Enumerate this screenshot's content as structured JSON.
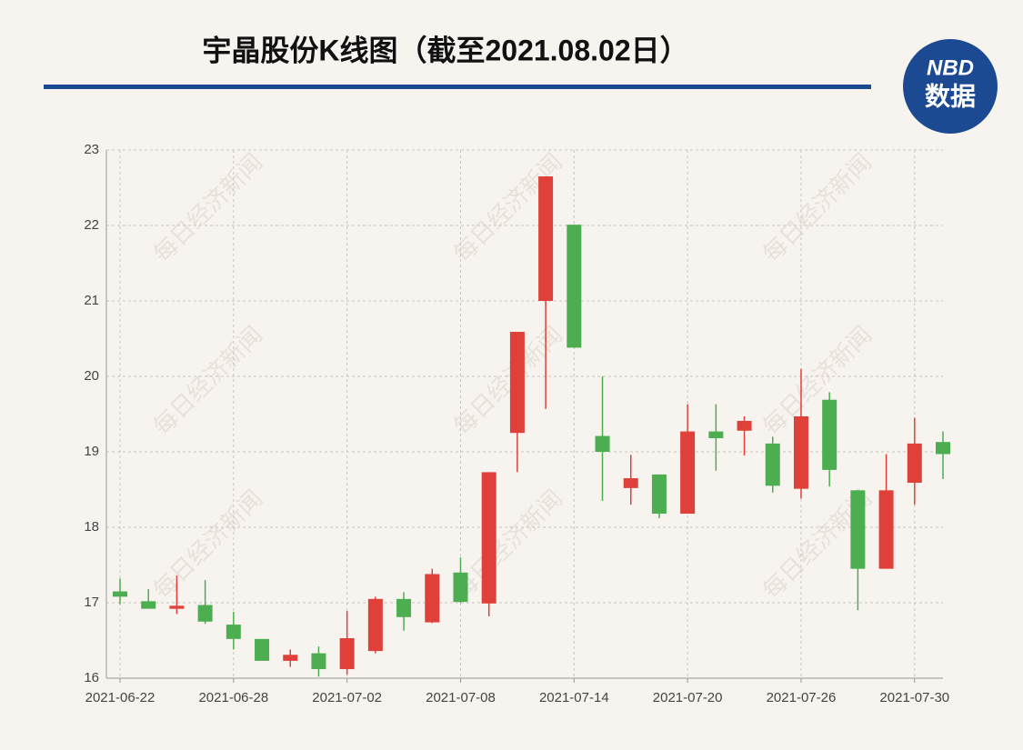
{
  "chart_data": {
    "type": "candlestick",
    "title": "宇晶股份K线图（截至2021.08.02日）",
    "logo": {
      "top": "NBD",
      "bottom": "数据"
    },
    "watermark": "每日经济新闻",
    "categories": [
      "2021-06-22",
      null,
      null,
      null,
      "2021-06-28",
      null,
      null,
      null,
      "2021-07-02",
      null,
      null,
      null,
      "2021-07-08",
      null,
      null,
      null,
      "2021-07-14",
      null,
      null,
      null,
      "2021-07-20",
      null,
      null,
      null,
      "2021-07-26",
      null,
      null,
      null,
      "2021-07-30",
      null
    ],
    "open": [
      17.15,
      17.02,
      16.92,
      16.97,
      16.71,
      16.52,
      16.23,
      16.33,
      16.12,
      16.36,
      17.05,
      16.74,
      17.4,
      16.99,
      19.25,
      21.0,
      22.01,
      19.21,
      18.52,
      18.7,
      18.18,
      19.27,
      19.28,
      19.11,
      18.51,
      19.69,
      18.49,
      17.45,
      18.59,
      19.13
    ],
    "high": [
      17.32,
      17.18,
      17.36,
      17.3,
      16.88,
      16.52,
      16.38,
      16.42,
      16.89,
      17.08,
      17.14,
      17.45,
      17.6,
      18.73,
      20.59,
      22.65,
      22.01,
      20.0,
      18.96,
      18.7,
      19.63,
      19.63,
      19.47,
      19.2,
      20.1,
      19.79,
      18.49,
      18.97,
      19.45,
      19.27
    ],
    "low": [
      16.98,
      16.92,
      16.85,
      16.72,
      16.38,
      16.23,
      16.15,
      16.02,
      16.05,
      16.33,
      16.63,
      16.73,
      17.0,
      16.82,
      18.73,
      19.57,
      20.38,
      18.35,
      18.3,
      18.12,
      18.18,
      18.75,
      18.95,
      18.46,
      18.38,
      18.54,
      16.9,
      17.45,
      18.3,
      18.64
    ],
    "close": [
      17.08,
      16.92,
      16.96,
      16.75,
      16.52,
      16.23,
      16.31,
      16.12,
      16.53,
      17.05,
      16.81,
      17.38,
      17.01,
      18.73,
      20.59,
      22.65,
      20.38,
      19.0,
      18.65,
      18.18,
      19.27,
      19.18,
      19.41,
      18.55,
      19.47,
      18.76,
      17.45,
      18.49,
      19.11,
      18.97
    ],
    "up_color": "#e0403a",
    "down_color": "#4cae50",
    "ylim": [
      16,
      23
    ],
    "yticks": [
      16,
      17,
      18,
      19,
      20,
      21,
      22,
      23
    ],
    "grid": true
  }
}
